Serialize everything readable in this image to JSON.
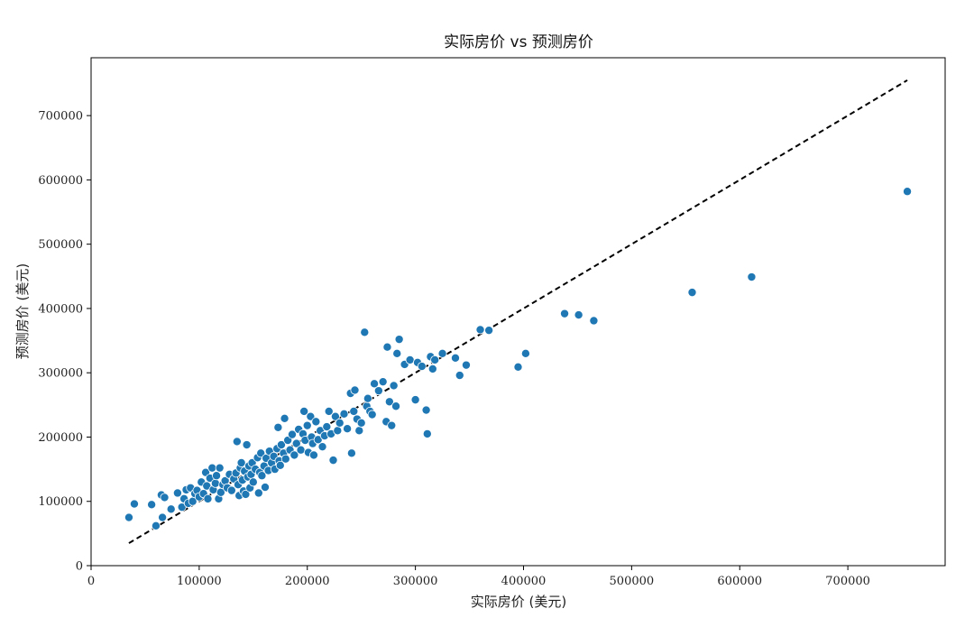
{
  "chart_data": {
    "type": "scatter",
    "title": "实际房价 vs 预测房价",
    "xlabel": "实际房价 (美元)",
    "ylabel": "预测房价 (美元)",
    "xlim": [
      0,
      790000
    ],
    "ylim": [
      0,
      790000
    ],
    "xticks": [
      0,
      100000,
      200000,
      300000,
      400000,
      500000,
      600000,
      700000
    ],
    "yticks": [
      0,
      100000,
      200000,
      300000,
      400000,
      500000,
      600000,
      700000
    ],
    "xtick_labels": [
      "0",
      "100000",
      "200000",
      "300000",
      "400000",
      "500000",
      "600000",
      "700000"
    ],
    "ytick_labels": [
      "0",
      "100000",
      "200000",
      "300000",
      "400000",
      "500000",
      "600000",
      "700000"
    ],
    "grid": false,
    "point_color": "#1f77b4",
    "reference_line": {
      "style": "dashed",
      "color": "#000000",
      "x": [
        35000,
        755000
      ],
      "y": [
        35000,
        755000
      ]
    },
    "points": [
      {
        "x": 35000,
        "y": 75000
      },
      {
        "x": 40000,
        "y": 96000
      },
      {
        "x": 56000,
        "y": 95000
      },
      {
        "x": 60000,
        "y": 62000
      },
      {
        "x": 65000,
        "y": 110000
      },
      {
        "x": 66000,
        "y": 75000
      },
      {
        "x": 68000,
        "y": 106000
      },
      {
        "x": 74000,
        "y": 88000
      },
      {
        "x": 80000,
        "y": 113000
      },
      {
        "x": 84000,
        "y": 91000
      },
      {
        "x": 86000,
        "y": 104000
      },
      {
        "x": 88000,
        "y": 118000
      },
      {
        "x": 90000,
        "y": 97000
      },
      {
        "x": 92000,
        "y": 121000
      },
      {
        "x": 94000,
        "y": 100000
      },
      {
        "x": 96000,
        "y": 112000
      },
      {
        "x": 98000,
        "y": 117000
      },
      {
        "x": 100000,
        "y": 107000
      },
      {
        "x": 102000,
        "y": 130000
      },
      {
        "x": 104000,
        "y": 112000
      },
      {
        "x": 106000,
        "y": 145000
      },
      {
        "x": 107000,
        "y": 124000
      },
      {
        "x": 108000,
        "y": 104000
      },
      {
        "x": 110000,
        "y": 136000
      },
      {
        "x": 112000,
        "y": 152000
      },
      {
        "x": 113000,
        "y": 118000
      },
      {
        "x": 115000,
        "y": 128000
      },
      {
        "x": 116000,
        "y": 140000
      },
      {
        "x": 118000,
        "y": 104000
      },
      {
        "x": 119000,
        "y": 152000
      },
      {
        "x": 120000,
        "y": 114000
      },
      {
        "x": 122000,
        "y": 126000
      },
      {
        "x": 124000,
        "y": 132000
      },
      {
        "x": 126000,
        "y": 121000
      },
      {
        "x": 128000,
        "y": 142000
      },
      {
        "x": 130000,
        "y": 117000
      },
      {
        "x": 132000,
        "y": 135000
      },
      {
        "x": 134000,
        "y": 144000
      },
      {
        "x": 135000,
        "y": 193000
      },
      {
        "x": 136000,
        "y": 126000
      },
      {
        "x": 137000,
        "y": 109000
      },
      {
        "x": 138000,
        "y": 152000
      },
      {
        "x": 139000,
        "y": 160000
      },
      {
        "x": 140000,
        "y": 133000
      },
      {
        "x": 141000,
        "y": 116000
      },
      {
        "x": 142000,
        "y": 147000
      },
      {
        "x": 143000,
        "y": 111000
      },
      {
        "x": 144000,
        "y": 188000
      },
      {
        "x": 145000,
        "y": 138000
      },
      {
        "x": 146000,
        "y": 155000
      },
      {
        "x": 147000,
        "y": 121000
      },
      {
        "x": 148000,
        "y": 142000
      },
      {
        "x": 149000,
        "y": 160000
      },
      {
        "x": 150000,
        "y": 130000
      },
      {
        "x": 152000,
        "y": 150000
      },
      {
        "x": 154000,
        "y": 168000
      },
      {
        "x": 155000,
        "y": 113000
      },
      {
        "x": 156000,
        "y": 145000
      },
      {
        "x": 157000,
        "y": 175000
      },
      {
        "x": 158000,
        "y": 140000
      },
      {
        "x": 160000,
        "y": 155000
      },
      {
        "x": 161000,
        "y": 122000
      },
      {
        "x": 162000,
        "y": 167000
      },
      {
        "x": 164000,
        "y": 148000
      },
      {
        "x": 165000,
        "y": 178000
      },
      {
        "x": 167000,
        "y": 160000
      },
      {
        "x": 169000,
        "y": 170000
      },
      {
        "x": 170000,
        "y": 150000
      },
      {
        "x": 172000,
        "y": 182000
      },
      {
        "x": 173000,
        "y": 215000
      },
      {
        "x": 174000,
        "y": 163000
      },
      {
        "x": 175000,
        "y": 156000
      },
      {
        "x": 176000,
        "y": 188000
      },
      {
        "x": 178000,
        "y": 175000
      },
      {
        "x": 179000,
        "y": 229000
      },
      {
        "x": 180000,
        "y": 166000
      },
      {
        "x": 182000,
        "y": 195000
      },
      {
        "x": 184000,
        "y": 180000
      },
      {
        "x": 186000,
        "y": 204000
      },
      {
        "x": 188000,
        "y": 172000
      },
      {
        "x": 190000,
        "y": 190000
      },
      {
        "x": 192000,
        "y": 212000
      },
      {
        "x": 194000,
        "y": 180000
      },
      {
        "x": 196000,
        "y": 205000
      },
      {
        "x": 197000,
        "y": 240000
      },
      {
        "x": 198000,
        "y": 195000
      },
      {
        "x": 200000,
        "y": 218000
      },
      {
        "x": 201000,
        "y": 176000
      },
      {
        "x": 203000,
        "y": 232000
      },
      {
        "x": 204000,
        "y": 200000
      },
      {
        "x": 205000,
        "y": 190000
      },
      {
        "x": 206000,
        "y": 172000
      },
      {
        "x": 208000,
        "y": 224000
      },
      {
        "x": 210000,
        "y": 196000
      },
      {
        "x": 212000,
        "y": 210000
      },
      {
        "x": 214000,
        "y": 185000
      },
      {
        "x": 216000,
        "y": 202000
      },
      {
        "x": 218000,
        "y": 216000
      },
      {
        "x": 220000,
        "y": 240000
      },
      {
        "x": 222000,
        "y": 205000
      },
      {
        "x": 224000,
        "y": 164000
      },
      {
        "x": 226000,
        "y": 232000
      },
      {
        "x": 228000,
        "y": 210000
      },
      {
        "x": 230000,
        "y": 222000
      },
      {
        "x": 234000,
        "y": 236000
      },
      {
        "x": 237000,
        "y": 213000
      },
      {
        "x": 240000,
        "y": 268000
      },
      {
        "x": 241000,
        "y": 175000
      },
      {
        "x": 243000,
        "y": 240000
      },
      {
        "x": 244000,
        "y": 273000
      },
      {
        "x": 246000,
        "y": 228000
      },
      {
        "x": 248000,
        "y": 210000
      },
      {
        "x": 250000,
        "y": 222000
      },
      {
        "x": 253000,
        "y": 363000
      },
      {
        "x": 255000,
        "y": 248000
      },
      {
        "x": 256000,
        "y": 260000
      },
      {
        "x": 258000,
        "y": 240000
      },
      {
        "x": 260000,
        "y": 235000
      },
      {
        "x": 262000,
        "y": 283000
      },
      {
        "x": 266000,
        "y": 272000
      },
      {
        "x": 270000,
        "y": 286000
      },
      {
        "x": 273000,
        "y": 224000
      },
      {
        "x": 274000,
        "y": 340000
      },
      {
        "x": 276000,
        "y": 255000
      },
      {
        "x": 278000,
        "y": 218000
      },
      {
        "x": 280000,
        "y": 280000
      },
      {
        "x": 282000,
        "y": 248000
      },
      {
        "x": 283000,
        "y": 330000
      },
      {
        "x": 285000,
        "y": 352000
      },
      {
        "x": 290000,
        "y": 313000
      },
      {
        "x": 295000,
        "y": 320000
      },
      {
        "x": 300000,
        "y": 258000
      },
      {
        "x": 302000,
        "y": 316000
      },
      {
        "x": 306000,
        "y": 310000
      },
      {
        "x": 310000,
        "y": 242000
      },
      {
        "x": 311000,
        "y": 205000
      },
      {
        "x": 314000,
        "y": 325000
      },
      {
        "x": 316000,
        "y": 306000
      },
      {
        "x": 318000,
        "y": 320000
      },
      {
        "x": 325000,
        "y": 330000
      },
      {
        "x": 337000,
        "y": 323000
      },
      {
        "x": 341000,
        "y": 296000
      },
      {
        "x": 347000,
        "y": 312000
      },
      {
        "x": 360000,
        "y": 367000
      },
      {
        "x": 368000,
        "y": 366000
      },
      {
        "x": 395000,
        "y": 309000
      },
      {
        "x": 402000,
        "y": 330000
      },
      {
        "x": 438000,
        "y": 392000
      },
      {
        "x": 451000,
        "y": 390000
      },
      {
        "x": 465000,
        "y": 381000
      },
      {
        "x": 556000,
        "y": 425000
      },
      {
        "x": 611000,
        "y": 449000
      },
      {
        "x": 755000,
        "y": 582000
      }
    ]
  }
}
